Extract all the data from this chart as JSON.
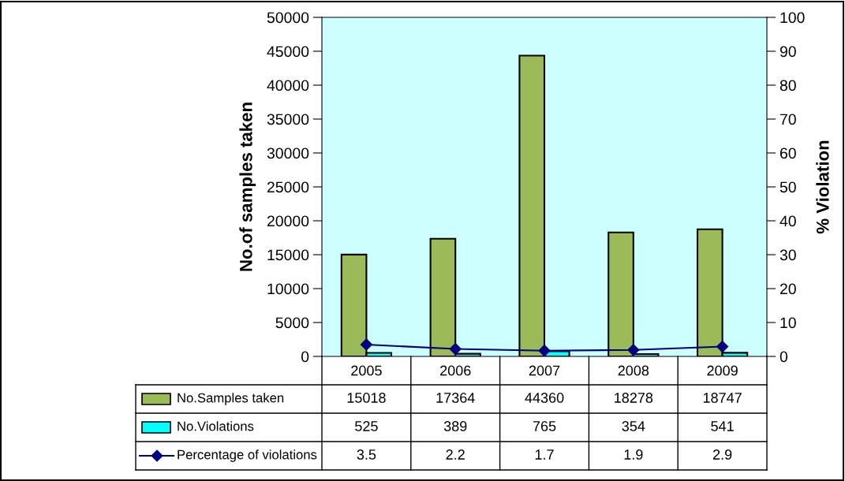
{
  "chart_data": {
    "type": "bar",
    "ylabel": "No.of samples taken",
    "y2label": "% Violation",
    "categories": [
      "2005",
      "2006",
      "2007",
      "2008",
      "2009"
    ],
    "series": [
      {
        "name": "No.Samples taken",
        "color": "#9bbb59",
        "values": [
          15018,
          17364,
          44360,
          18278,
          18747
        ]
      },
      {
        "name": "No.Violations",
        "color": "#00ffff",
        "values": [
          525,
          389,
          765,
          354,
          541
        ]
      },
      {
        "name": "Percentage of violations",
        "type": "line",
        "axis": "y2",
        "color": "#000080",
        "marker": "diamond",
        "values": [
          3.5,
          2.2,
          1.7,
          1.9,
          2.9
        ]
      }
    ],
    "ylim": [
      0,
      50000
    ],
    "yticks": [
      0,
      5000,
      10000,
      15000,
      20000,
      25000,
      30000,
      35000,
      40000,
      45000,
      50000
    ],
    "y2lim": [
      0,
      100
    ],
    "y2ticks": [
      0,
      10,
      20,
      30,
      40,
      50,
      60,
      70,
      80,
      90,
      100
    ],
    "data_labels": true,
    "legend": "bottom",
    "grid": false
  }
}
